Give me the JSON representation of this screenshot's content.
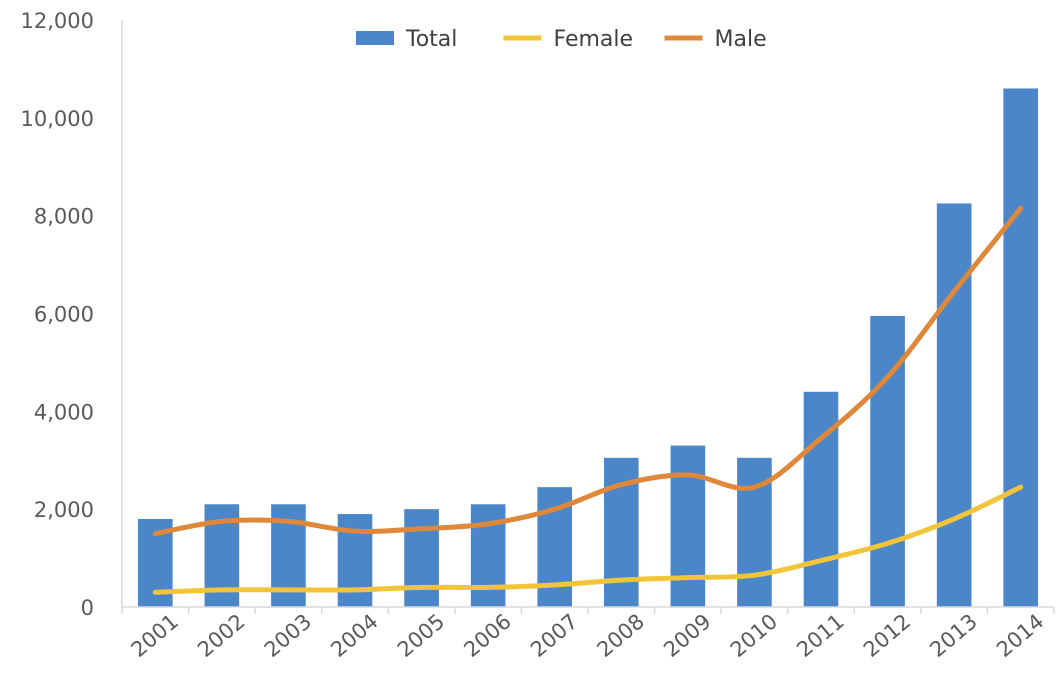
{
  "chart_data": {
    "type": "bar",
    "categories": [
      "2001",
      "2002",
      "2003",
      "2004",
      "2005",
      "2006",
      "2007",
      "2008",
      "2009",
      "2010",
      "2011",
      "2012",
      "2013",
      "2014"
    ],
    "series": [
      {
        "name": "Total",
        "kind": "bar",
        "color": "#4a86c8",
        "values": [
          1800,
          2100,
          2100,
          1900,
          2000,
          2100,
          2450,
          3050,
          3300,
          3050,
          4400,
          5950,
          8250,
          10600
        ]
      },
      {
        "name": "Female",
        "kind": "line",
        "color": "#f2c43a",
        "values": [
          300,
          350,
          350,
          350,
          400,
          400,
          450,
          550,
          600,
          650,
          950,
          1300,
          1800,
          2450
        ]
      },
      {
        "name": "Male",
        "kind": "line",
        "color": "#e0883a",
        "values": [
          1500,
          1750,
          1750,
          1550,
          1600,
          1700,
          2000,
          2500,
          2700,
          2450,
          3450,
          4700,
          6450,
          8150
        ]
      }
    ],
    "ylim": [
      0,
      12000
    ],
    "yticks": [
      0,
      2000,
      4000,
      6000,
      8000,
      10000,
      12000
    ],
    "ytick_labels": [
      "0",
      "2,000",
      "4,000",
      "6,000",
      "8,000",
      "10,000",
      "12,000"
    ],
    "grid": false,
    "legend_position": "top-center",
    "title": "",
    "xlabel": "",
    "ylabel": ""
  }
}
